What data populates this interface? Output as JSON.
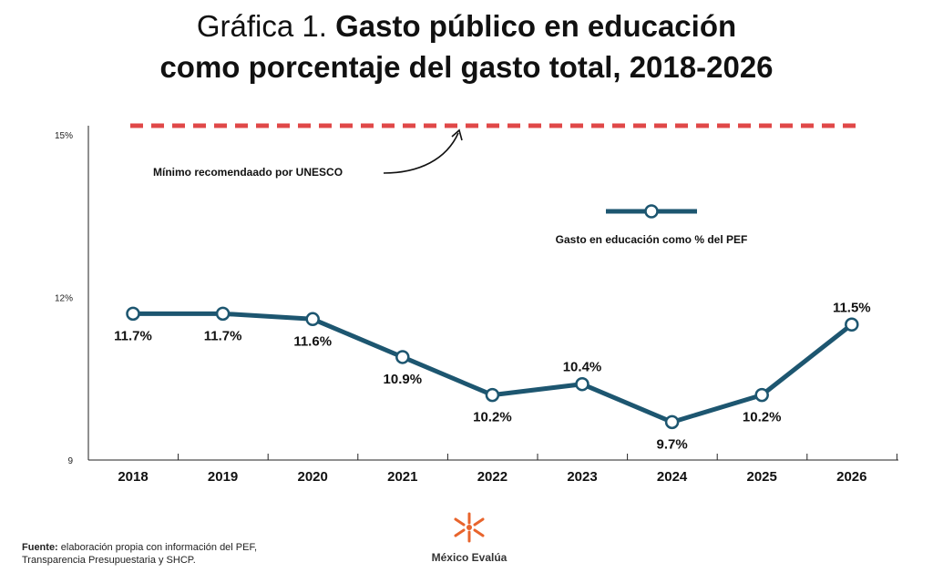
{
  "header": {
    "title_prefix": "Gráfica 1.",
    "title_line1": "Gasto público en educación",
    "title_line2": "como porcentaje del gasto total, 2018-2026"
  },
  "colors": {
    "series": "#1d5670",
    "reference": "#e04848",
    "axis": "#222222",
    "logo_orange": "#e8642c"
  },
  "chart_data": {
    "type": "line",
    "title": "Gasto público en educación como porcentaje del gasto total, 2018-2026",
    "xlabel": "",
    "ylabel": "",
    "ylim": [
      9,
      15
    ],
    "yticks": [
      {
        "value": 9,
        "label": "9"
      },
      {
        "value": 12,
        "label": "12%"
      },
      {
        "value": 15,
        "label": "15%"
      }
    ],
    "x": [
      "2018",
      "2019",
      "2020",
      "2021",
      "2022",
      "2023",
      "2024",
      "2025",
      "2026"
    ],
    "series": [
      {
        "name": "Gasto en educación como % del PEF",
        "values": [
          11.7,
          11.7,
          11.6,
          10.9,
          10.2,
          10.4,
          9.7,
          10.2,
          11.5
        ],
        "labels": [
          "11.7%",
          "11.7%",
          "11.6%",
          "10.9%",
          "10.2%",
          "10.4%",
          "9.7%",
          "10.2%",
          "11.5%"
        ],
        "label_side": [
          "below",
          "below",
          "below",
          "below",
          "below",
          "above",
          "below",
          "below",
          "above"
        ]
      }
    ],
    "reference_line": {
      "value": 15,
      "label": "Mínimo recomendaado por UNESCO"
    },
    "legend": {
      "label": "Gasto en educación como % del PEF",
      "placement": "right-middle"
    }
  },
  "footer": {
    "source_label": "Fuente:",
    "source_text_line1": "elaboración propia con información del PEF,",
    "source_text_line2": "Transparencia Presupuestaria y SHCP.",
    "logo_name": "México Evalúa"
  }
}
